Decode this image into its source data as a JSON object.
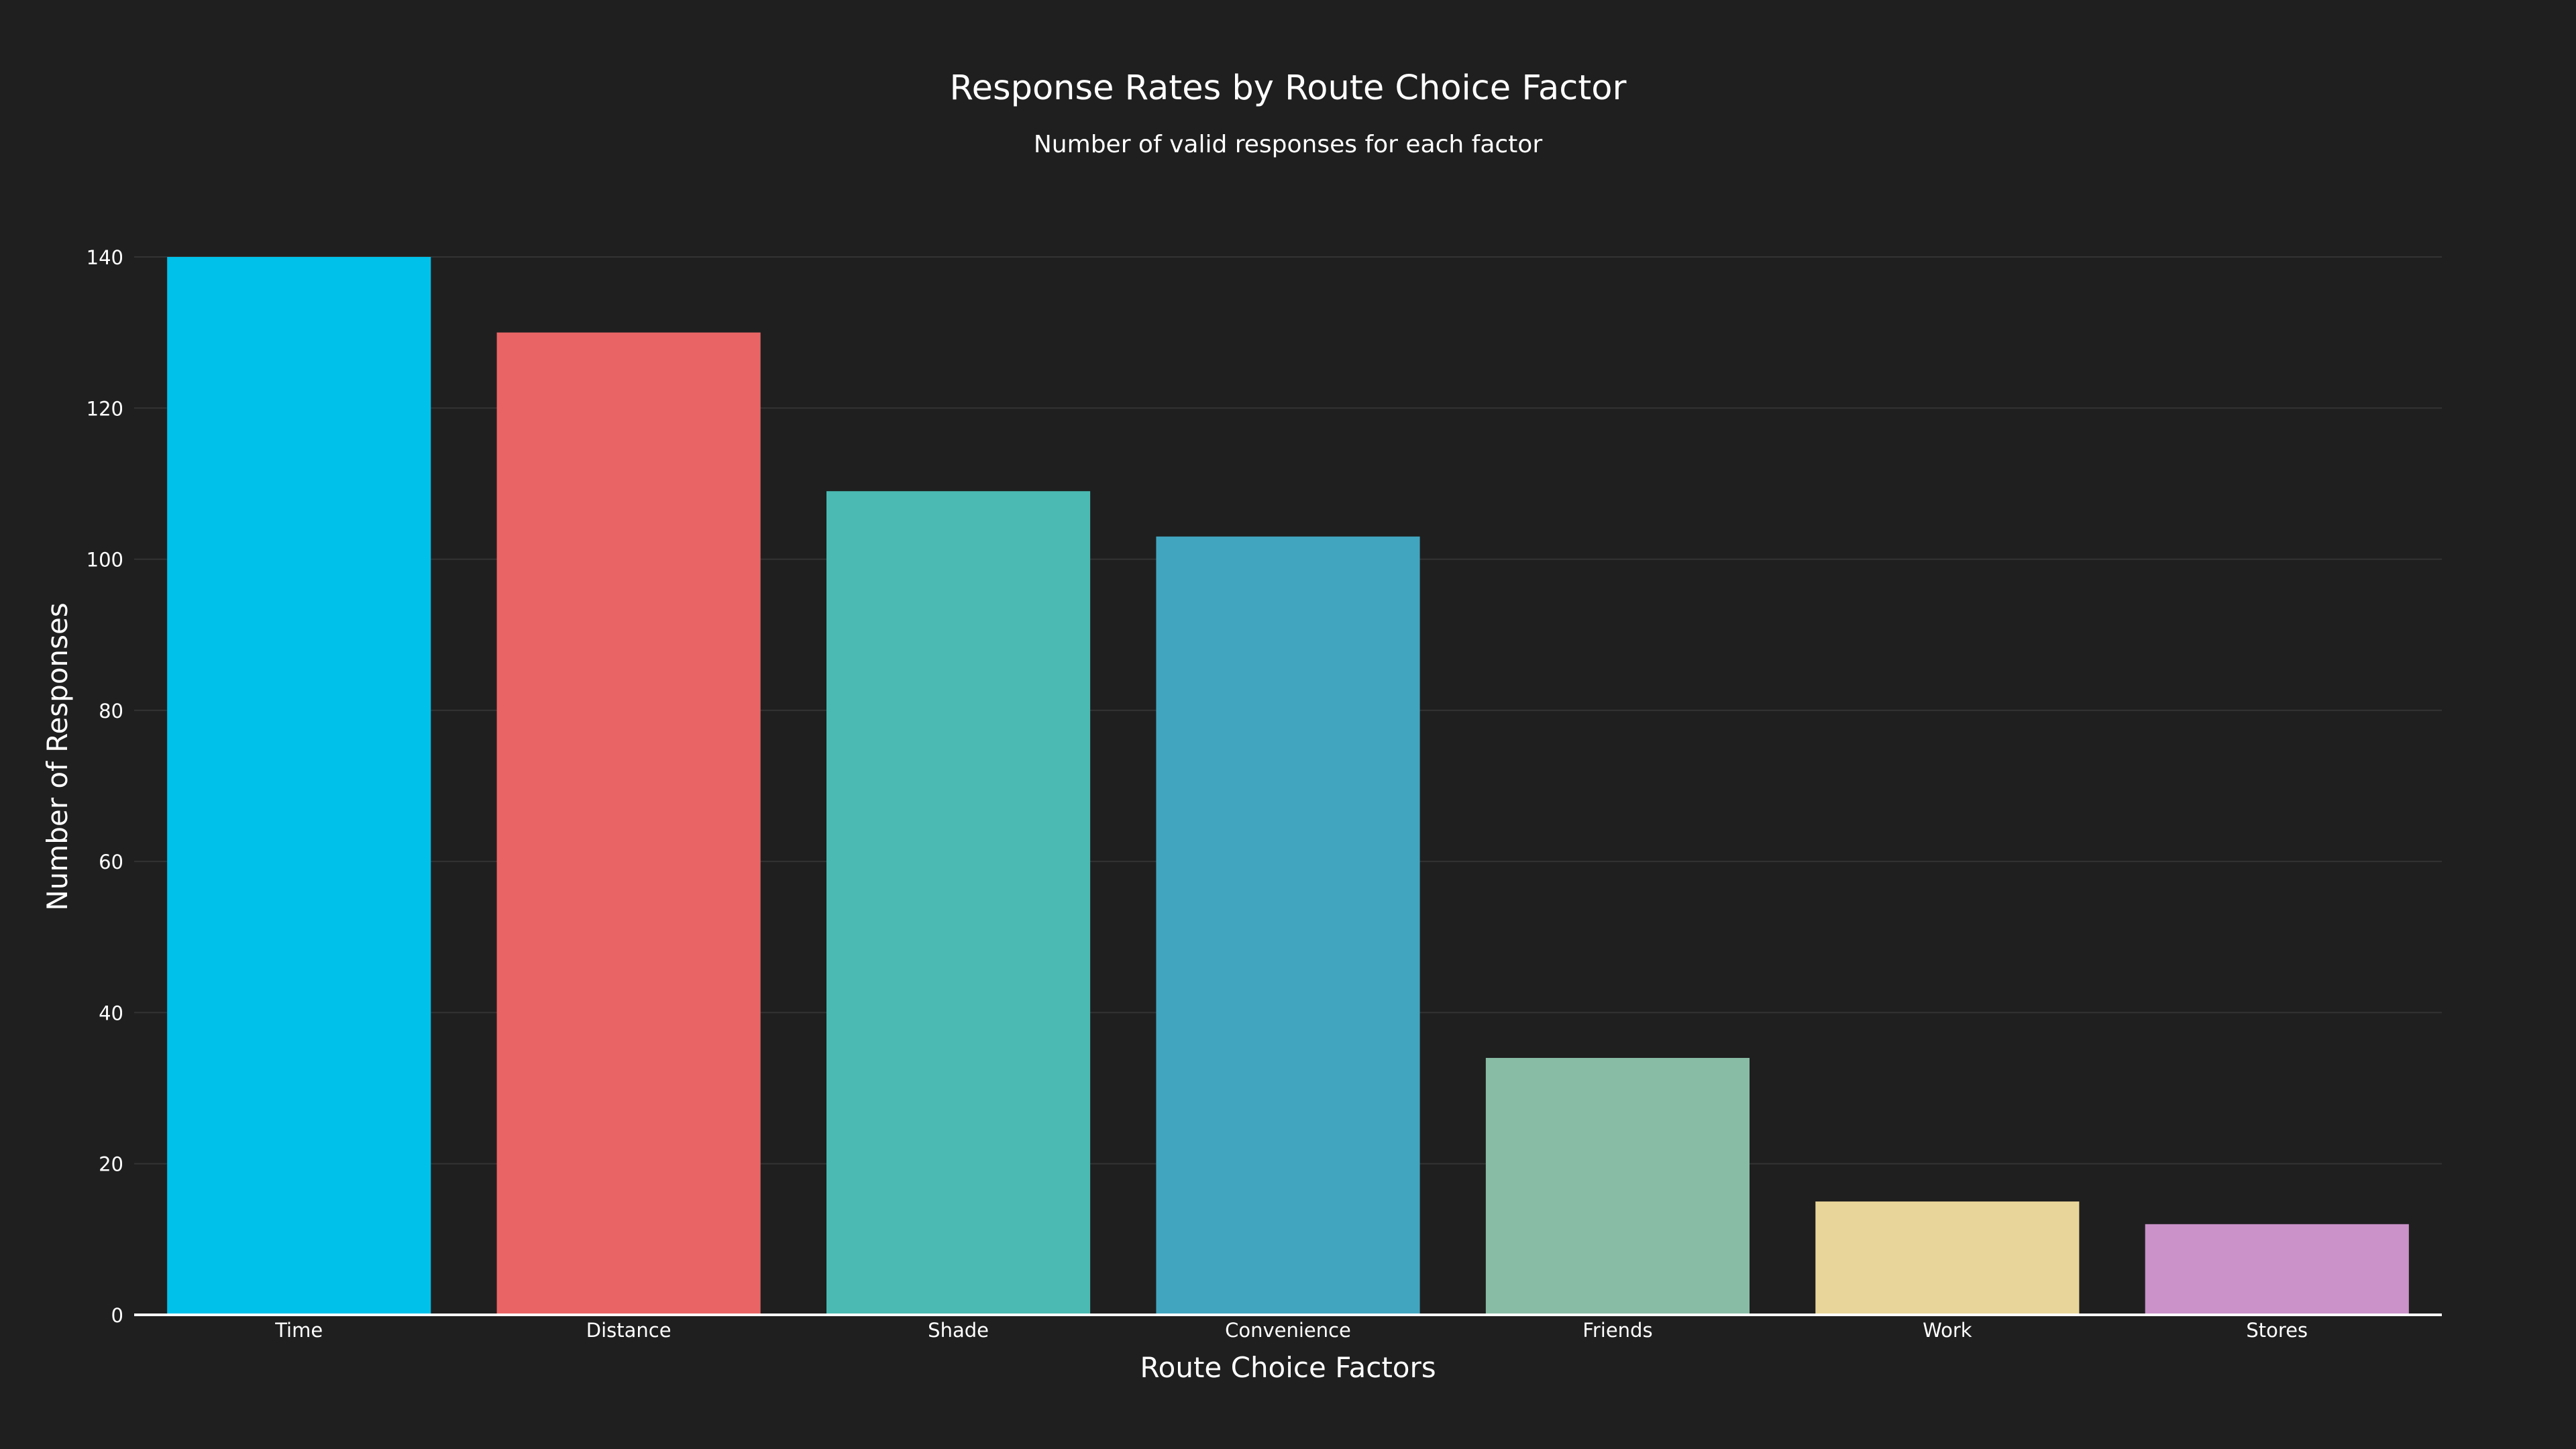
{
  "chart_data": {
    "type": "bar",
    "title": "Response Rates by Route Choice Factor",
    "subtitle": "Number of valid responses for each factor",
    "xlabel": "Route Choice Factors",
    "ylabel": "Number of Responses",
    "categories": [
      "Time",
      "Distance",
      "Shade",
      "Convenience",
      "Friends",
      "Work",
      "Stores"
    ],
    "values": [
      140,
      130,
      109,
      103,
      34,
      15,
      12
    ],
    "colors": [
      "#00c1ea",
      "#e96565",
      "#4abab2",
      "#42a5bf",
      "#89bca5",
      "#e8d599",
      "#ca92c9"
    ],
    "ylim": [
      0,
      140
    ],
    "yticks": [
      0,
      20,
      40,
      60,
      80,
      100,
      120,
      140
    ],
    "grid": true,
    "legend": "none",
    "background": "#1f1f1f",
    "gridcolor": "#333333",
    "text_color": "#ffffff"
  }
}
